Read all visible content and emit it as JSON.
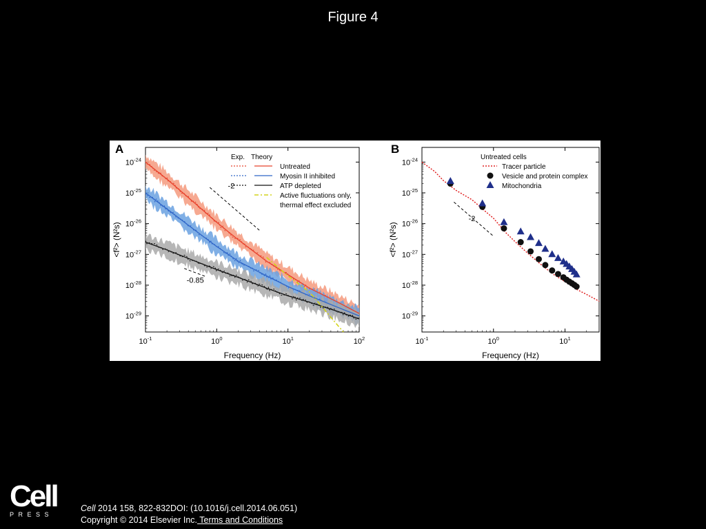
{
  "slide": {
    "title": "Figure 4"
  },
  "footer": {
    "logo_word": "Cell",
    "logo_sub": "PRESS",
    "journal": "Cell",
    "citation_rest": " 2014 158, 822-832DOI: (10.1016/j.cell.2014.06.051)",
    "copyright": "Copyright © 2014 Elsevier Inc.",
    "terms": " Terms and Conditions"
  },
  "colors": {
    "untreated": "#e8412b",
    "untreated_band": "#f59a7e",
    "myosin": "#2f66c8",
    "myosin_band": "#6aa1e0",
    "atp": "#111111",
    "atp_band": "#a9a9a9",
    "active": "#d4d418",
    "tracer": "#e02020",
    "vesicle": "#111111",
    "mito": "#1f2f8a"
  },
  "chart_data": [
    {
      "panel": "A",
      "type": "line",
      "xlabel": "Frequency (Hz)",
      "ylabel": "<f²> (N²s)",
      "xscale": "log",
      "yscale": "log",
      "xlim": [
        0.1,
        100
      ],
      "ylim": [
        3e-30,
        3e-24
      ],
      "xticks": [
        0.1,
        1,
        10,
        100
      ],
      "xtick_labels": [
        [
          "10",
          "-1"
        ],
        [
          "10",
          "0"
        ],
        [
          "10",
          "1"
        ],
        [
          "10",
          "2"
        ]
      ],
      "yticks": [
        1e-24,
        1e-25,
        1e-26,
        1e-27,
        1e-28,
        1e-29
      ],
      "ytick_labels": [
        [
          "10",
          "-24"
        ],
        [
          "10",
          "-25"
        ],
        [
          "10",
          "-26"
        ],
        [
          "10",
          "-27"
        ],
        [
          "10",
          "-28"
        ],
        [
          "10",
          "-29"
        ]
      ],
      "legend": {
        "position": "top-right",
        "header_exp": "Exp.",
        "header_theory": "Theory",
        "entries": [
          "Untreated",
          "Myosin II inhibited",
          "ATP depleted",
          "Active fluctuations only,",
          "thermal effect excluded"
        ]
      },
      "series": [
        {
          "name": "Untreated",
          "color_key": "untreated",
          "band_key": "untreated_band",
          "x": [
            0.1,
            0.2,
            0.5,
            1,
            2,
            5,
            10,
            20,
            50,
            100
          ],
          "y": [
            1e-24,
            2.8e-25,
            4.5e-26,
            1.1e-26,
            3e-27,
            6e-28,
            2.2e-28,
            8e-29,
            2.8e-29,
            1.2e-29
          ]
        },
        {
          "name": "Myosin II inhibited",
          "color_key": "myosin",
          "band_key": "myosin_band",
          "x": [
            0.1,
            0.2,
            0.5,
            1,
            2,
            5,
            10,
            20,
            50,
            100
          ],
          "y": [
            1e-25,
            3e-26,
            6e-27,
            1.8e-27,
            6e-28,
            2e-28,
            9e-29,
            4.5e-29,
            1.9e-29,
            1e-29
          ]
        },
        {
          "name": "ATP depleted",
          "color_key": "atp",
          "band_key": "atp_band",
          "x": [
            0.1,
            0.2,
            0.5,
            1,
            2,
            5,
            10,
            20,
            50,
            100
          ],
          "y": [
            2.5e-27,
            1.4e-27,
            6e-28,
            3.2e-28,
            1.8e-28,
            8e-29,
            4.5e-29,
            2.8e-29,
            1.4e-29,
            8e-30
          ]
        },
        {
          "name": "Active fluctuations only, thermal effect excluded",
          "color_key": "active",
          "x": [
            5,
            10,
            20,
            30,
            40,
            60
          ],
          "y": [
            8e-28,
            2e-28,
            6e-29,
            2e-29,
            9e-30,
            3e-30
          ]
        }
      ],
      "annotations": [
        {
          "text": "-2",
          "slope": -2,
          "x": [
            0.8,
            4
          ],
          "y": [
            1.5e-25,
            6e-27
          ],
          "label_at": [
            1.6,
            1.4e-25
          ]
        },
        {
          "text": "-0.85",
          "slope": -0.85,
          "x": [
            0.35,
            0.7
          ],
          "y": [
            3.5e-28,
            1.9e-28
          ],
          "label_at": [
            0.5,
            1.2e-28
          ]
        }
      ]
    },
    {
      "panel": "B",
      "type": "scatter",
      "xlabel": "Frequency (Hz)",
      "ylabel": "<f²> (N²s)",
      "xscale": "log",
      "yscale": "log",
      "xlim": [
        0.1,
        30
      ],
      "ylim": [
        3e-30,
        3e-24
      ],
      "xticks": [
        0.1,
        1,
        10
      ],
      "xtick_labels": [
        [
          "10",
          "-1"
        ],
        [
          "10",
          "0"
        ],
        [
          "10",
          "1"
        ]
      ],
      "yticks": [
        1e-24,
        1e-25,
        1e-26,
        1e-27,
        1e-28,
        1e-29
      ],
      "ytick_labels": [
        [
          "10",
          "-24"
        ],
        [
          "10",
          "-25"
        ],
        [
          "10",
          "-26"
        ],
        [
          "10",
          "-27"
        ],
        [
          "10",
          "-28"
        ],
        [
          "10",
          "-29"
        ]
      ],
      "legend": {
        "position": "top-right",
        "header": "Untreated cells",
        "entries": [
          "Tracer particle",
          "Vesicle and protein complex",
          "Mitochondria"
        ]
      },
      "series": [
        {
          "name": "Tracer particle",
          "color_key": "tracer",
          "style": "dotted-line",
          "x": [
            0.1,
            0.15,
            0.2,
            0.3,
            0.5,
            0.7,
            1,
            1.5,
            2,
            3,
            5,
            7,
            10,
            15,
            20,
            30
          ],
          "y": [
            1e-24,
            5e-25,
            2.5e-25,
            1.2e-25,
            6e-26,
            3e-26,
            1.5e-26,
            5e-27,
            2.6e-27,
            1.1e-27,
            4e-28,
            2.2e-28,
            1.3e-28,
            7e-29,
            5e-29,
            3e-29
          ]
        },
        {
          "name": "Vesicle and protein complex",
          "color_key": "vesicle",
          "marker": "circle",
          "x": [
            0.25,
            0.7,
            1.4,
            2.4,
            3.3,
            4.3,
            5.3,
            6.6,
            8,
            9.5,
            10.5,
            11.5,
            12.5,
            13.5,
            14.5
          ],
          "y": [
            2e-25,
            3.5e-26,
            7e-27,
            2.5e-27,
            1.25e-27,
            7e-28,
            4.5e-28,
            3e-28,
            2.3e-28,
            1.8e-28,
            1.5e-28,
            1.3e-28,
            1.15e-28,
            1.02e-28,
            9e-29
          ]
        },
        {
          "name": "Mitochondria",
          "color_key": "mito",
          "marker": "triangle",
          "x": [
            0.25,
            0.7,
            1.4,
            2.4,
            3.3,
            4.3,
            5.3,
            6.6,
            8,
            9.5,
            10.5,
            11.5,
            12.5,
            13.5,
            14.5
          ],
          "y": [
            2.4e-25,
            4.5e-26,
            1.1e-26,
            5.5e-27,
            3.6e-27,
            2.3e-27,
            1.5e-27,
            1e-27,
            7.5e-28,
            5.8e-28,
            4.8e-28,
            4e-28,
            3.3e-28,
            2.7e-28,
            2.2e-28
          ]
        }
      ],
      "annotations": [
        {
          "text": "-2",
          "slope": -2,
          "x": [
            0.28,
            1
          ],
          "y": [
            5e-26,
            3.9e-27
          ],
          "label_at": [
            0.5,
            1.2e-26
          ]
        }
      ]
    }
  ]
}
